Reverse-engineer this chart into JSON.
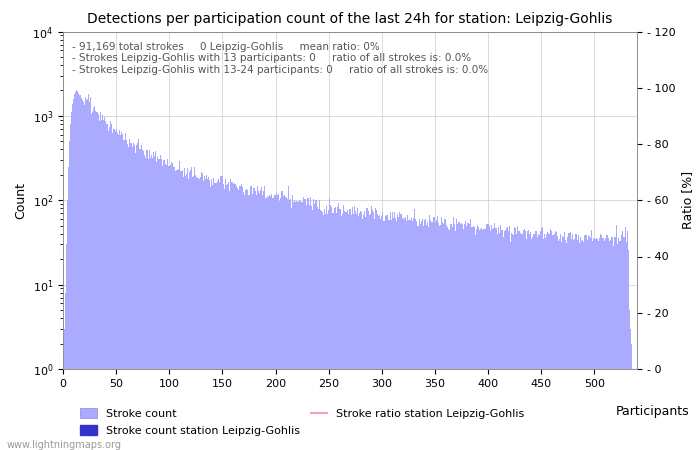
{
  "title": "Detections per participation count of the last 24h for station: Leipzig-Gohlis",
  "annotation_lines": [
    "91,169 total strokes     0 Leipzig-Gohlis     mean ratio: 0%",
    "Strokes Leipzig-Gohlis with 13 participants: 0     ratio of all strokes is: 0.0%",
    "Strokes Leipzig-Gohlis with 13-24 participants: 0     ratio of all strokes is: 0.0%"
  ],
  "xlabel": "Participants",
  "ylabel_left": "Count",
  "ylabel_right": "Ratio [%]",
  "xlim": [
    0,
    540
  ],
  "ylim_log": [
    1,
    10000
  ],
  "ylim_right": [
    0,
    120
  ],
  "yticks_right": [
    0,
    20,
    40,
    60,
    80,
    100,
    120
  ],
  "bar_color": "#aaaaff",
  "station_bar_color": "#3333cc",
  "ratio_line_color": "#ff99cc",
  "legend_labels": [
    "Stroke count",
    "Stroke count station Leipzig-Gohlis",
    "Stroke ratio station Leipzig-Gohlis"
  ],
  "watermark": "www.lightningmaps.org",
  "grid_color": "#cccccc",
  "background_color": "#ffffff"
}
